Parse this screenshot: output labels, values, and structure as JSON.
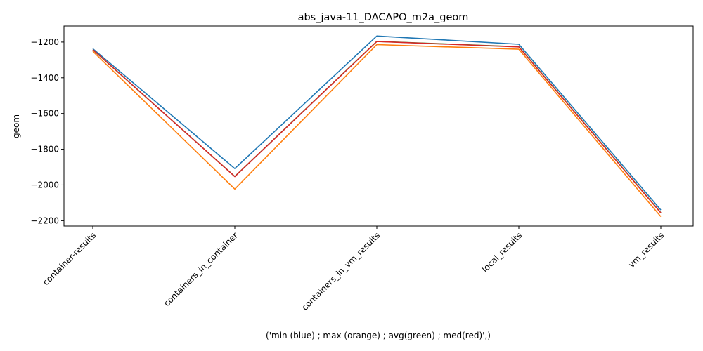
{
  "chart_data": {
    "type": "line",
    "title": "abs_java-11_DACAPO_m2a_geom",
    "xlabel": "('min (blue) ; max (orange) ; avg(green) ; med(red)',)",
    "ylabel": "geom",
    "categories": [
      "container-results",
      "containers_in_container",
      "containers_in_vm_results",
      "local_results",
      "vm_results"
    ],
    "ylim": [
      -2230,
      -1110
    ],
    "yticks": [
      -1200,
      -1400,
      -1600,
      -1800,
      -2000,
      -2200
    ],
    "ytick_labels": [
      "−1200",
      "−1400",
      "−1600",
      "−1800",
      "−2000",
      "−2200"
    ],
    "grid": false,
    "series": [
      {
        "color": "#1f77b4",
        "values": [
          -1237,
          -1908,
          -1166,
          -1212,
          -2140
        ]
      },
      {
        "color": "#ff7f0e",
        "values": [
          -1252,
          -2023,
          -1214,
          -1240,
          -2177
        ]
      },
      {
        "color": "#2ca02c",
        "values": [
          -1243,
          -1952,
          -1196,
          -1226,
          -2155
        ]
      },
      {
        "color": "#d62728",
        "values": [
          -1242,
          -1953,
          -1197,
          -1227,
          -2156
        ]
      }
    ]
  }
}
